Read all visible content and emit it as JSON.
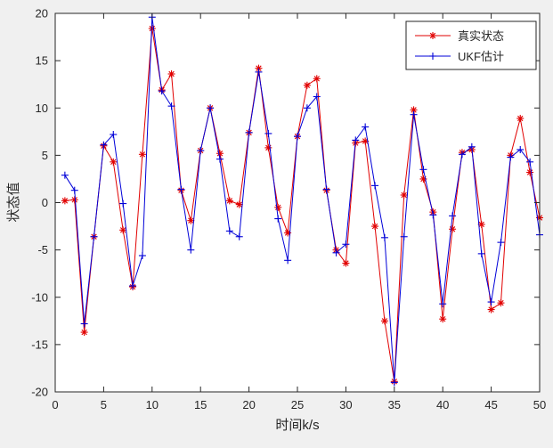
{
  "figure": {
    "background": "#f0f0f0",
    "plot_background": "#ffffff",
    "axis_color": "#262626",
    "legend_border": "#262626"
  },
  "chart_data": {
    "type": "line",
    "title": "",
    "xlabel": "时间k/s",
    "ylabel": "状态值",
    "xlim": [
      0,
      50
    ],
    "ylim": [
      -20,
      20
    ],
    "xticks": [
      0,
      5,
      10,
      15,
      20,
      25,
      30,
      35,
      40,
      45,
      50
    ],
    "yticks": [
      -20,
      -15,
      -10,
      -5,
      0,
      5,
      10,
      15,
      20
    ],
    "grid": false,
    "legend_position": "top-right",
    "x": [
      1,
      2,
      3,
      4,
      5,
      6,
      7,
      8,
      9,
      10,
      11,
      12,
      13,
      14,
      15,
      16,
      17,
      18,
      19,
      20,
      21,
      22,
      23,
      24,
      25,
      26,
      27,
      28,
      29,
      30,
      31,
      32,
      33,
      34,
      35,
      36,
      37,
      38,
      39,
      40,
      41,
      42,
      43,
      44,
      45,
      46,
      47,
      48,
      49,
      50
    ],
    "series": [
      {
        "name": "真实状态",
        "color": "#e10000",
        "marker": "asterisk",
        "values": [
          0.2,
          0.3,
          -13.7,
          -3.6,
          6.0,
          4.3,
          -2.9,
          -8.9,
          5.1,
          18.4,
          11.9,
          13.6,
          1.3,
          -1.9,
          5.5,
          10.0,
          5.2,
          0.2,
          -0.2,
          7.4,
          14.2,
          5.8,
          -0.5,
          -3.2,
          7.0,
          12.4,
          13.1,
          1.3,
          -5.0,
          -6.4,
          6.3,
          6.5,
          -2.5,
          -12.5,
          -18.9,
          0.8,
          9.8,
          2.5,
          -1.0,
          -12.3,
          -2.8,
          5.3,
          5.6,
          -2.3,
          -11.3,
          -10.6,
          5.0,
          8.9,
          3.2,
          -1.6
        ]
      },
      {
        "name": "UKF估计",
        "color": "#0000d8",
        "marker": "plus",
        "values": [
          2.9,
          1.3,
          -12.8,
          -3.6,
          6.1,
          7.2,
          -0.1,
          -8.8,
          -5.6,
          19.6,
          11.8,
          10.2,
          1.4,
          -5.0,
          5.5,
          10.0,
          4.6,
          -3.0,
          -3.6,
          7.4,
          13.8,
          7.3,
          -1.7,
          -6.1,
          7.0,
          10.0,
          11.2,
          1.4,
          -5.3,
          -4.4,
          6.6,
          8.0,
          1.8,
          -3.7,
          -19.0,
          -3.6,
          9.3,
          3.5,
          -1.3,
          -10.7,
          -1.4,
          5.1,
          5.9,
          -5.4,
          -10.5,
          -4.2,
          4.8,
          5.6,
          4.3,
          -3.4
        ]
      }
    ]
  }
}
